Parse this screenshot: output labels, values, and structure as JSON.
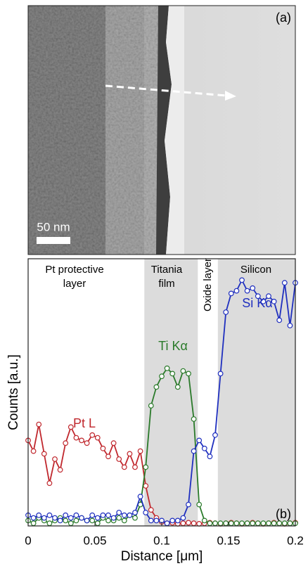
{
  "panel_a": {
    "label": "(a)",
    "scale_bar": "50 nm"
  },
  "chart_data": {
    "type": "line",
    "panel_label": "(b)",
    "x_label": "Distance [μm]",
    "y_label": "Counts [a.u.]",
    "xlim": [
      0,
      0.2
    ],
    "xticks": [
      0,
      0.05,
      0.1,
      0.15,
      0.2
    ],
    "ylim": [
      0,
      1
    ],
    "regions": [
      {
        "lines": [
          "Pt protective",
          "layer"
        ],
        "shaded": false
      },
      {
        "lines": [
          "Titania",
          "film"
        ],
        "span": [
          0.087,
          0.127
        ],
        "shaded": true
      },
      {
        "lines": [
          "Oxide layer"
        ],
        "shaded": false
      },
      {
        "lines": [
          "Silicon"
        ],
        "span": [
          0.142,
          0.2
        ],
        "shaded": true
      }
    ],
    "x": [
      0,
      0.004,
      0.008,
      0.012,
      0.016,
      0.02,
      0.024,
      0.028,
      0.032,
      0.036,
      0.04,
      0.044,
      0.048,
      0.052,
      0.056,
      0.06,
      0.064,
      0.068,
      0.072,
      0.076,
      0.08,
      0.084,
      0.088,
      0.092,
      0.096,
      0.1,
      0.104,
      0.108,
      0.112,
      0.116,
      0.12,
      0.124,
      0.128,
      0.132,
      0.136,
      0.14,
      0.144,
      0.148,
      0.152,
      0.156,
      0.16,
      0.164,
      0.168,
      0.172,
      0.176,
      0.18,
      0.184,
      0.188,
      0.192,
      0.196,
      0.2
    ],
    "series": [
      {
        "name": "Pt L",
        "color": "#c0272d",
        "values": [
          0.32,
          0.28,
          0.38,
          0.27,
          0.16,
          0.25,
          0.21,
          0.31,
          0.37,
          0.33,
          0.32,
          0.31,
          0.34,
          0.33,
          0.29,
          0.26,
          0.31,
          0.25,
          0.22,
          0.27,
          0.22,
          0.28,
          0.15,
          0.06,
          0.03,
          0.015,
          0.01,
          0.012,
          0.008,
          0.01,
          0.012,
          0.01,
          0.008,
          0.01,
          0.012,
          0.01,
          0.008,
          0.01,
          0.012,
          0.01,
          0.008,
          0.01,
          0.012,
          0.01,
          0.008,
          0.01,
          0.012,
          0.01,
          0.008,
          0.01,
          0.012
        ]
      },
      {
        "name": "Ti Kα",
        "color": "#2a7a2a",
        "values": [
          0.02,
          0.01,
          0.03,
          0.02,
          0.01,
          0.02,
          0.03,
          0.02,
          0.01,
          0.02,
          0.03,
          0.02,
          0.02,
          0.01,
          0.03,
          0.02,
          0.02,
          0.03,
          0.02,
          0.04,
          0.03,
          0.08,
          0.22,
          0.45,
          0.52,
          0.56,
          0.59,
          0.57,
          0.52,
          0.58,
          0.57,
          0.4,
          0.08,
          0.02,
          0.01,
          0.01,
          0.01,
          0.01,
          0.01,
          0.01,
          0.01,
          0.01,
          0.01,
          0.01,
          0.01,
          0.01,
          0.01,
          0.01,
          0.01,
          0.01,
          0.01
        ]
      },
      {
        "name": "Si Kα",
        "color": "#1f2fbf",
        "values": [
          0.04,
          0.03,
          0.04,
          0.03,
          0.04,
          0.03,
          0.02,
          0.04,
          0.03,
          0.04,
          0.03,
          0.02,
          0.04,
          0.03,
          0.04,
          0.04,
          0.03,
          0.05,
          0.04,
          0.04,
          0.05,
          0.11,
          0.05,
          0.02,
          0.02,
          0.02,
          0.01,
          0.02,
          0.02,
          0.03,
          0.08,
          0.28,
          0.32,
          0.29,
          0.26,
          0.34,
          0.57,
          0.8,
          0.87,
          0.88,
          0.92,
          0.88,
          0.89,
          0.86,
          0.84,
          0.86,
          0.84,
          0.77,
          0.91,
          0.75,
          0.91
        ]
      }
    ]
  }
}
